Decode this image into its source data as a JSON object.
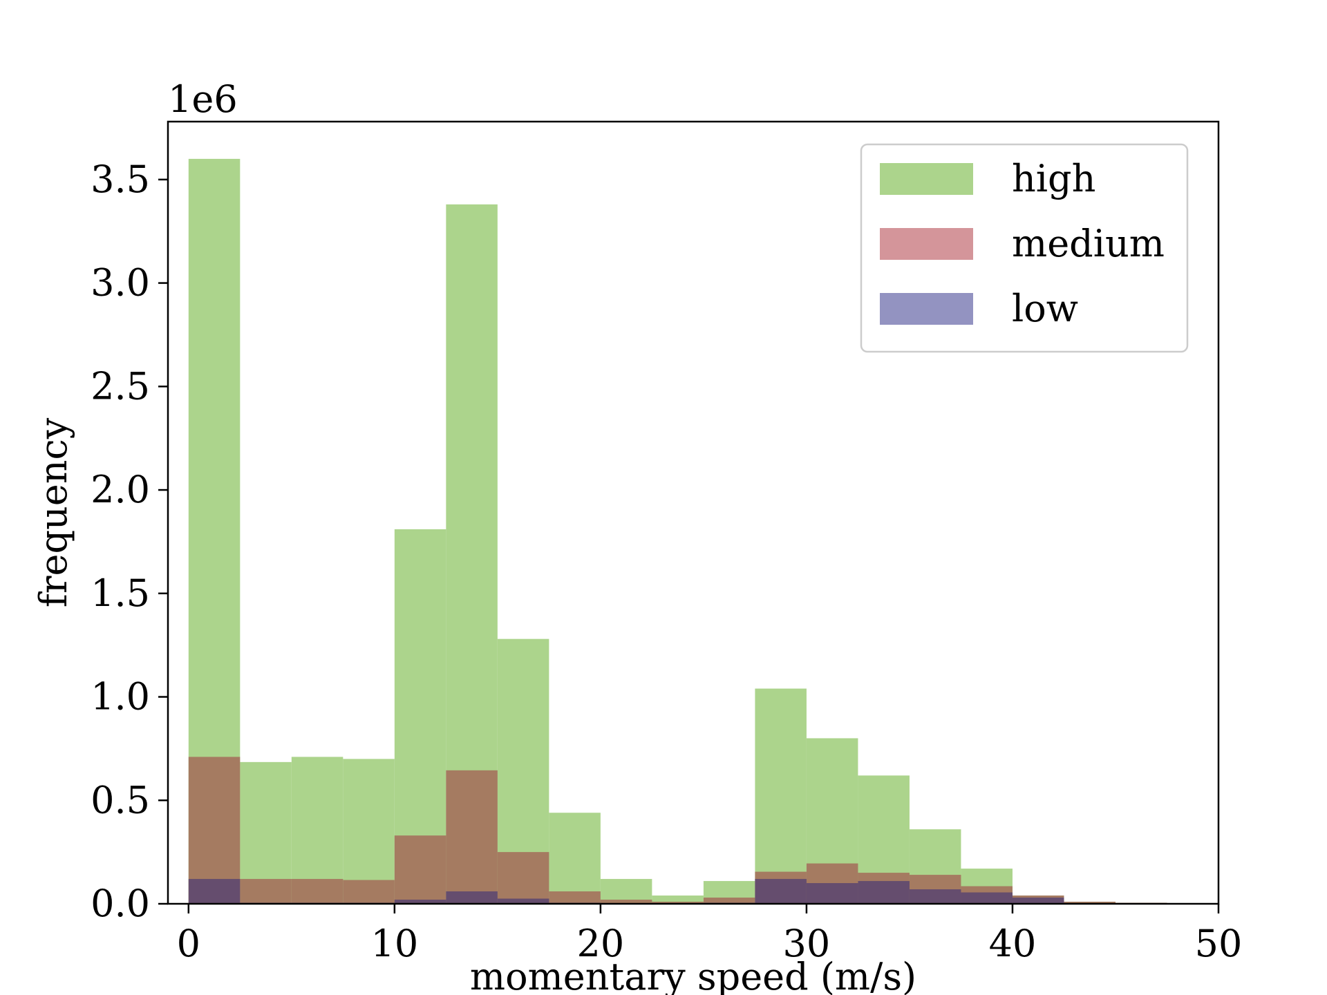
{
  "chart_data": {
    "type": "bar",
    "title": "",
    "xlabel": "momentary speed (m/s)",
    "ylabel": "frequency",
    "y_offset_label": "1e6",
    "xlim": [
      -1.0,
      50.0
    ],
    "ylim": [
      0,
      3.78
    ],
    "xticks": [
      0,
      10,
      20,
      30,
      40,
      50
    ],
    "xtick_labels": [
      "0",
      "10",
      "20",
      "30",
      "40",
      "50"
    ],
    "yticks": [
      0.0,
      0.5,
      1.0,
      1.5,
      2.0,
      2.5,
      3.0,
      3.5
    ],
    "ytick_labels": [
      "0.0",
      "0.5",
      "1.0",
      "1.5",
      "2.0",
      "2.5",
      "3.0",
      "3.5"
    ],
    "grid": false,
    "legend_position": "upper right",
    "bin_edges": [
      0,
      2.5,
      5,
      7.5,
      10,
      12.5,
      15,
      17.5,
      20,
      22.5,
      25,
      27.5,
      30,
      32.5,
      35,
      37.5,
      40,
      42.5,
      45,
      47.5,
      50
    ],
    "series": [
      {
        "name": "high",
        "color": "#acd48c",
        "values": [
          3.6,
          0.685,
          0.71,
          0.7,
          1.81,
          3.38,
          1.28,
          0.44,
          0.12,
          0.04,
          0.11,
          1.04,
          0.8,
          0.62,
          0.36,
          0.17,
          0.02,
          0.005,
          0.002,
          0.0
        ]
      },
      {
        "name": "medium",
        "color": "#a57b61",
        "values": [
          0.71,
          0.12,
          0.12,
          0.115,
          0.33,
          0.645,
          0.25,
          0.06,
          0.02,
          0.01,
          0.03,
          0.155,
          0.195,
          0.15,
          0.14,
          0.085,
          0.04,
          0.01,
          0.005,
          0.0
        ]
      },
      {
        "name": "low",
        "color": "#654d6e",
        "values": [
          0.12,
          0.005,
          0.005,
          0.005,
          0.02,
          0.06,
          0.025,
          0.005,
          0.0,
          0.0,
          0.005,
          0.12,
          0.1,
          0.11,
          0.07,
          0.055,
          0.03,
          0.0,
          0.0,
          0.0
        ]
      }
    ],
    "legend": [
      {
        "label": "high",
        "swatch_color": "#acd48c"
      },
      {
        "label": "medium",
        "swatch_color": "#d4959a"
      },
      {
        "label": "low",
        "swatch_color": "#9393c1"
      }
    ]
  }
}
